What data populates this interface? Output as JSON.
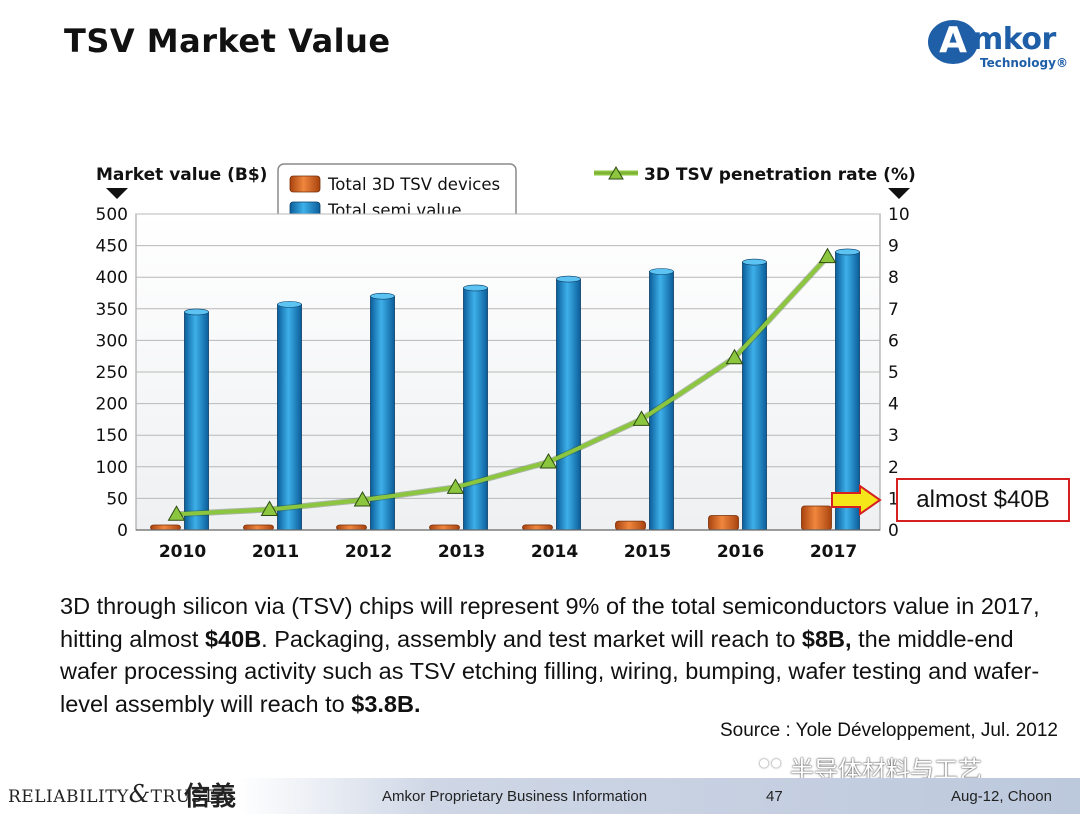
{
  "slide": {
    "title": "TSV Market Value"
  },
  "logo": {
    "mark": "A",
    "word": "mkor",
    "sub": "Technology®"
  },
  "chart_data": {
    "type": "bar",
    "title": "",
    "categories": [
      "2010",
      "2011",
      "2012",
      "2013",
      "2014",
      "2015",
      "2016",
      "2017"
    ],
    "series": [
      {
        "name": "Total 3D TSV devices",
        "kind": "bar",
        "axis": "left",
        "color": "#e0702a",
        "values": [
          1.5,
          2,
          3,
          5,
          8,
          14,
          23,
          38
        ]
      },
      {
        "name": "Total semi value",
        "kind": "bar",
        "axis": "left",
        "color": "#1f8fd0",
        "values": [
          345,
          357,
          370,
          383,
          397,
          409,
          424,
          440
        ]
      },
      {
        "name": "3D TSV penetration rate (%)",
        "kind": "line",
        "axis": "right",
        "color": "#8cc63f",
        "values": [
          0.5,
          0.65,
          0.95,
          1.35,
          2.15,
          3.5,
          5.45,
          8.65
        ]
      }
    ],
    "y_left": {
      "label": "Market value (B$)",
      "min": 0,
      "max": 500,
      "ticks": [
        0,
        50,
        100,
        150,
        200,
        250,
        300,
        350,
        400,
        450,
        500
      ]
    },
    "y_right": {
      "label": "3D TSV penetration rate (%)",
      "min": 0,
      "max": 10,
      "ticks": [
        0,
        1,
        2,
        3,
        4,
        5,
        6,
        7,
        8,
        9,
        10
      ]
    },
    "grid": true,
    "legend_position": "top-center",
    "annotation": "almost $40B"
  },
  "body": {
    "p1": "3D through silicon via (TSV) chips will represent 9% of the total semiconductors value in 2017, hitting almost ",
    "b1": "$40B",
    "p2": ". Packaging, assembly and test market will reach to ",
    "b2": "$8B,",
    "p3": " the middle-end wafer processing activity such as TSV etching filling, wiring, bumping, wafer testing and wafer-level assembly will reach to ",
    "b3": "$3.8B."
  },
  "source": "Source : Yole Développement, Jul. 2012",
  "watermark": "半导体材料与工艺",
  "footer": {
    "brand": "RELIABILITY",
    "brand_amp": "&",
    "brand2": "TRUST",
    "hanzi": "信義",
    "center": "Amkor Proprietary Business Information",
    "page": "47",
    "date": "Aug-12, Choon"
  }
}
